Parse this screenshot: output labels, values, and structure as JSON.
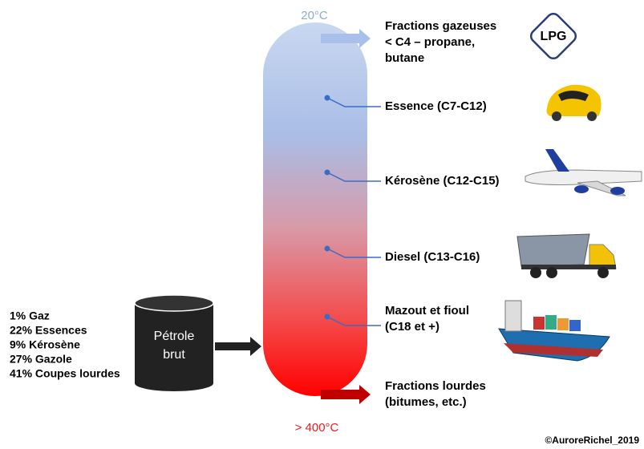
{
  "column": {
    "top_temperature": "20°C",
    "bottom_temperature": "> 400°C"
  },
  "fractions": [
    {
      "lines": [
        "Fractions gazeuses",
        "< C4 – propane,",
        "butane"
      ],
      "badge": "LPG"
    },
    {
      "lines": [
        "Essence (C7-C12)"
      ]
    },
    {
      "lines": [
        "Kérosène (C12-C15)"
      ]
    },
    {
      "lines": [
        "Diesel (C13-C16)"
      ]
    },
    {
      "lines": [
        "Mazout et fioul",
        "(C18 et +)"
      ]
    },
    {
      "lines": [
        "Fractions lourdes",
        "(bitumes, etc.)"
      ]
    }
  ],
  "feed": {
    "label_lines": [
      "Pétrole",
      "brut"
    ],
    "composition": [
      "1% Gaz",
      "22% Essences",
      "9% Kérosène",
      "27% Gazole",
      "41% Coupes lourdes"
    ]
  },
  "credit": "©AuroreRichel_2019"
}
